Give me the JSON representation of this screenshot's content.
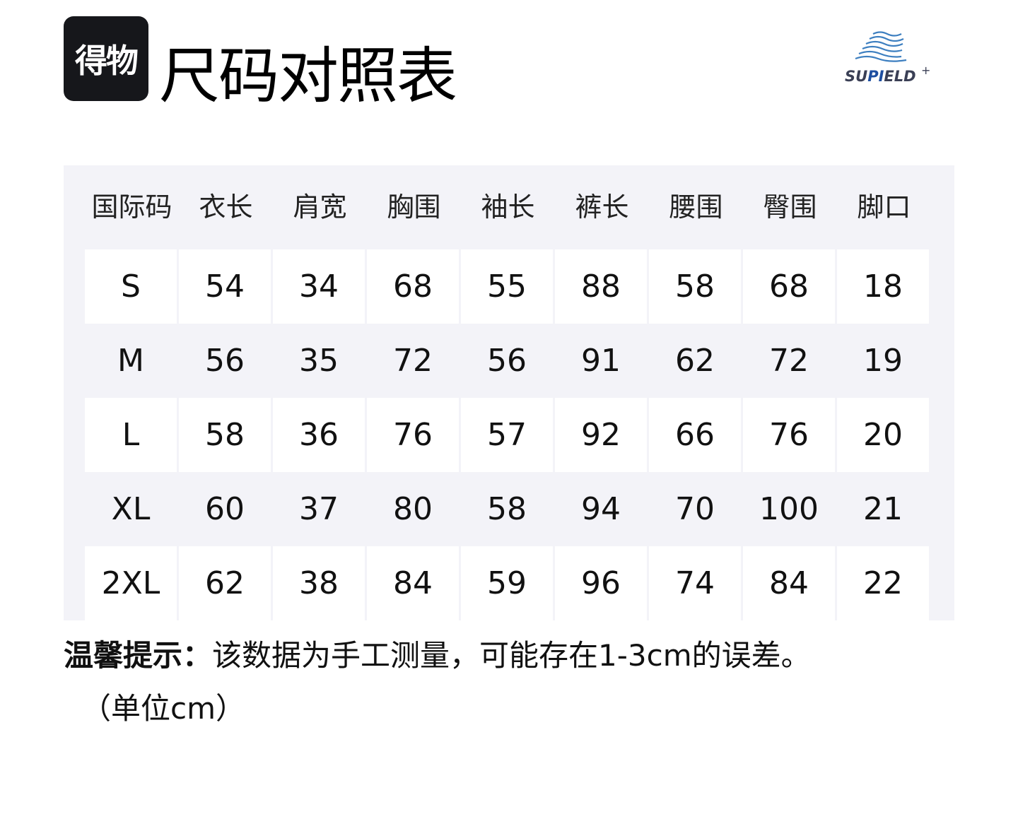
{
  "logo": {
    "text": "得物"
  },
  "title": "尺码对照表",
  "brand": {
    "name_a": "SU",
    "name_b": "PI",
    "name_c": "ELD",
    "plus": "+",
    "color": "#1e4ea0"
  },
  "table": {
    "headers": [
      "国际码",
      "衣长",
      "肩宽",
      "胸围",
      "袖长",
      "裤长",
      "腰围",
      "臀围",
      "脚口"
    ],
    "rows": [
      [
        "S",
        "54",
        "34",
        "68",
        "55",
        "88",
        "58",
        "68",
        "18"
      ],
      [
        "M",
        "56",
        "35",
        "72",
        "56",
        "91",
        "62",
        "72",
        "19"
      ],
      [
        "L",
        "58",
        "36",
        "76",
        "57",
        "92",
        "66",
        "76",
        "20"
      ],
      [
        "XL",
        "60",
        "37",
        "80",
        "58",
        "94",
        "70",
        "100",
        "21"
      ],
      [
        "2XL",
        "62",
        "38",
        "84",
        "59",
        "96",
        "74",
        "84",
        "22"
      ]
    ]
  },
  "note": {
    "label": "温馨提示：",
    "text": "该数据为手工测量，可能存在1-3cm的误差。",
    "unit": "（单位cm）"
  }
}
